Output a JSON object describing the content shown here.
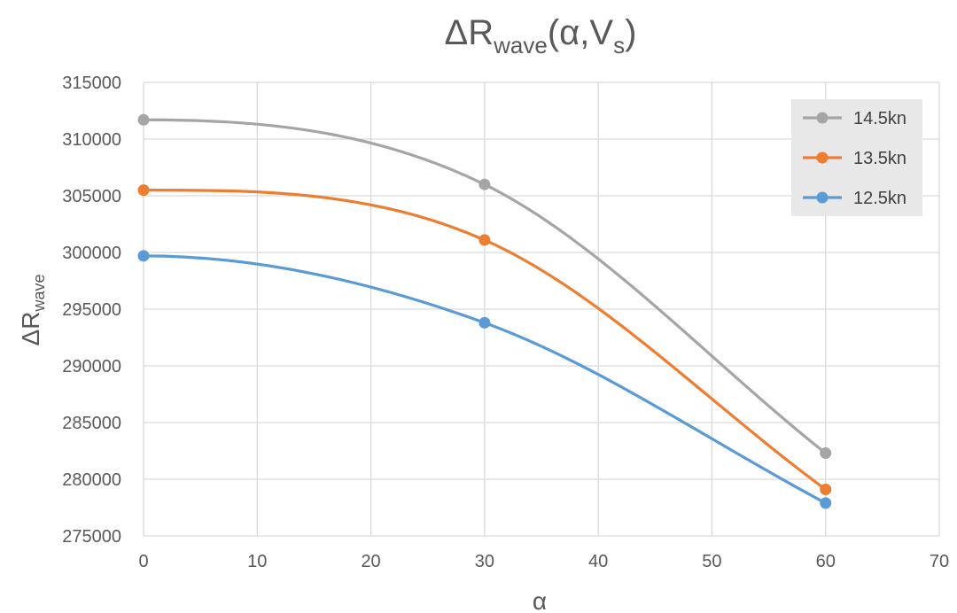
{
  "chart_data": {
    "type": "line",
    "title": {
      "main": "ΔR",
      "sub": "wave",
      "tail": "(α,V",
      "sub2": "s",
      "end": ")"
    },
    "xlabel": "α",
    "ylabel": {
      "main": "ΔR",
      "sub": "wave"
    },
    "xlim": [
      0,
      70
    ],
    "ylim": [
      275000,
      315000
    ],
    "x_ticks": [
      "0",
      "10",
      "20",
      "30",
      "40",
      "50",
      "60",
      "70"
    ],
    "y_ticks": [
      "275000",
      "280000",
      "285000",
      "290000",
      "295000",
      "300000",
      "305000",
      "310000",
      "315000"
    ],
    "grid": true,
    "smooth": true,
    "legend_position": "top-right",
    "x": [
      0,
      30,
      60
    ],
    "series": [
      {
        "name": "14.5kn",
        "color": "#a5a5a5",
        "values": [
          311700,
          306000,
          282300
        ]
      },
      {
        "name": "13.5kn",
        "color": "#ed7d31",
        "values": [
          305500,
          301100,
          279100
        ]
      },
      {
        "name": "12.5kn",
        "color": "#5b9bd5",
        "values": [
          299700,
          293800,
          277900
        ]
      }
    ]
  }
}
